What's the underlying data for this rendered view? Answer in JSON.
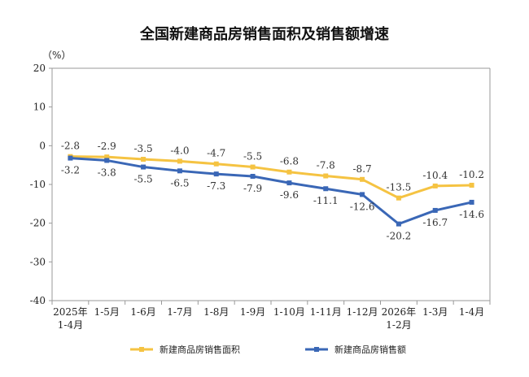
{
  "chart_data": {
    "type": "line",
    "title": "全国新建商品房销售面积及销售额增速",
    "ylabel": "（%）",
    "ylim": [
      -40,
      20
    ],
    "yticks": [
      20,
      10,
      0,
      -10,
      -20,
      -30,
      -40
    ],
    "grid": false,
    "legend_position": "bottom",
    "categories": [
      [
        "2025年",
        "1-4月"
      ],
      [
        "1-5月"
      ],
      [
        "1-6月"
      ],
      [
        "1-7月"
      ],
      [
        "1-8月"
      ],
      [
        "1-9月"
      ],
      [
        "1-10月"
      ],
      [
        "1-11月"
      ],
      [
        "1-12月"
      ],
      [
        "2026年",
        "1-2月"
      ],
      [
        "1-3月"
      ],
      [
        "1-4月"
      ]
    ],
    "series": [
      {
        "name": "新建商品房销售面积",
        "color": "#F5C342",
        "values": [
          -2.8,
          -2.9,
          -3.5,
          -4.0,
          -4.7,
          -5.5,
          -6.8,
          -7.8,
          -8.7,
          -13.5,
          -10.4,
          -10.2
        ],
        "labels": [
          "-2.8",
          "-2.9",
          "-3.5",
          "-4.0",
          "-4.7",
          "-5.5",
          "-6.8",
          "-7.8",
          "-8.7",
          "-13.5",
          "-10.4",
          "-10.2"
        ]
      },
      {
        "name": "新建商品房销售额",
        "color": "#3A67B6",
        "values": [
          -3.2,
          -3.8,
          -5.5,
          -6.5,
          -7.3,
          -7.9,
          -9.6,
          -11.1,
          -12.6,
          -20.2,
          -16.7,
          -14.6
        ],
        "labels": [
          "-3.2",
          "-3.8",
          "-5.5",
          "-6.5",
          "-7.3",
          "-7.9",
          "-9.6",
          "-11.1",
          "-12.6",
          "-20.2",
          "-16.7",
          "-14.6"
        ]
      }
    ]
  }
}
